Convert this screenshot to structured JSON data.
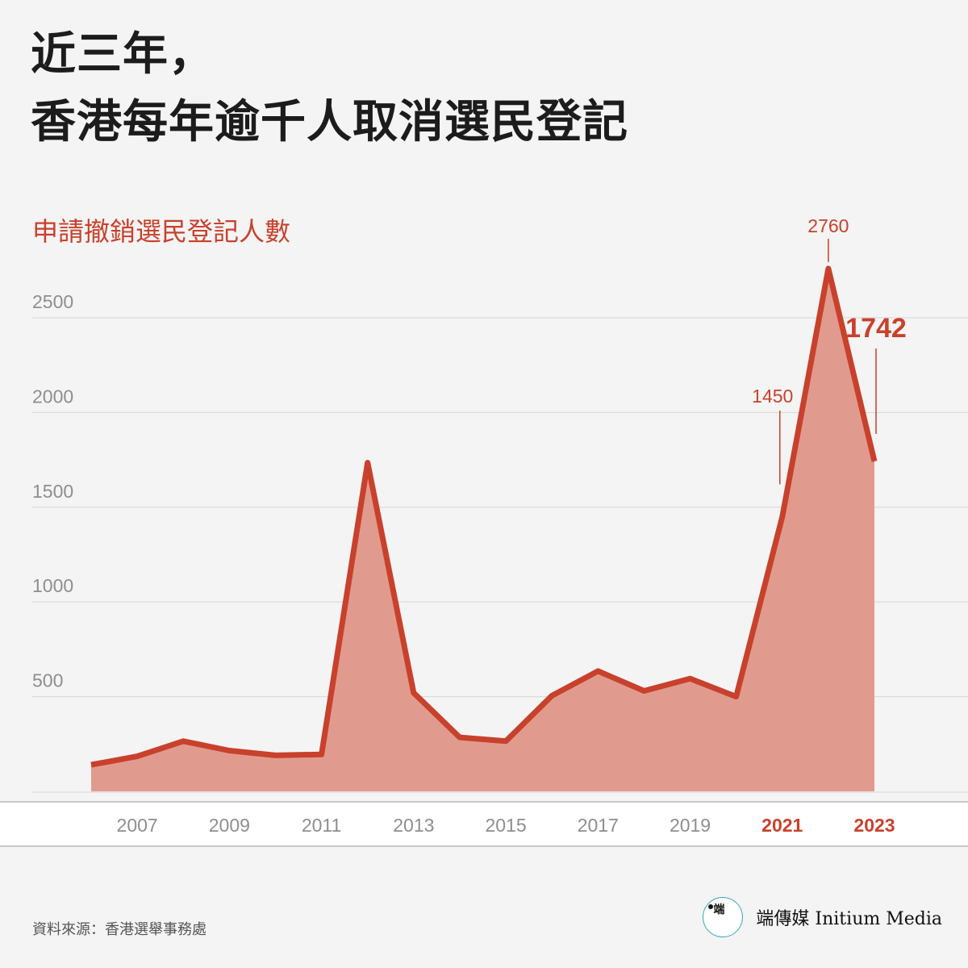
{
  "title": {
    "line1": "近三年，",
    "line2": "香港每年逾千人取消選民登記"
  },
  "subtitle": "申請撤銷選民登記人數",
  "footer": {
    "source": "資料來源：香港選舉事務處"
  },
  "brand": {
    "logo_mark": "端",
    "name": "端傳媒 Initium Media"
  },
  "colors": {
    "accent": "#c8412c",
    "fill": "#e19b8e",
    "grid": "#d6d6d6",
    "tick": "#8e8e8e"
  },
  "chart_data": {
    "type": "area",
    "x": [
      2006,
      2007,
      2008,
      2009,
      2010,
      2011,
      2012,
      2013,
      2014,
      2015,
      2016,
      2017,
      2018,
      2019,
      2020,
      2021,
      2022,
      2023
    ],
    "y": [
      140,
      185,
      265,
      215,
      190,
      195,
      1735,
      520,
      285,
      265,
      505,
      635,
      530,
      595,
      500,
      1450,
      2760,
      1742
    ],
    "ylim": [
      0,
      2900
    ],
    "yticks": [
      500,
      1000,
      1500,
      2000,
      2500
    ],
    "xtick_labels": [
      "2007",
      "2009",
      "2011",
      "2013",
      "2015",
      "2017",
      "2019",
      "2021",
      "2023"
    ],
    "highlighted_xticks": [
      "2021",
      "2023"
    ],
    "annotations": [
      {
        "x": 2021,
        "label": "1450"
      },
      {
        "x": 2022,
        "label": "2760"
      },
      {
        "x": 2023,
        "label": "1742",
        "emphasis": true
      }
    ],
    "grid": true
  }
}
